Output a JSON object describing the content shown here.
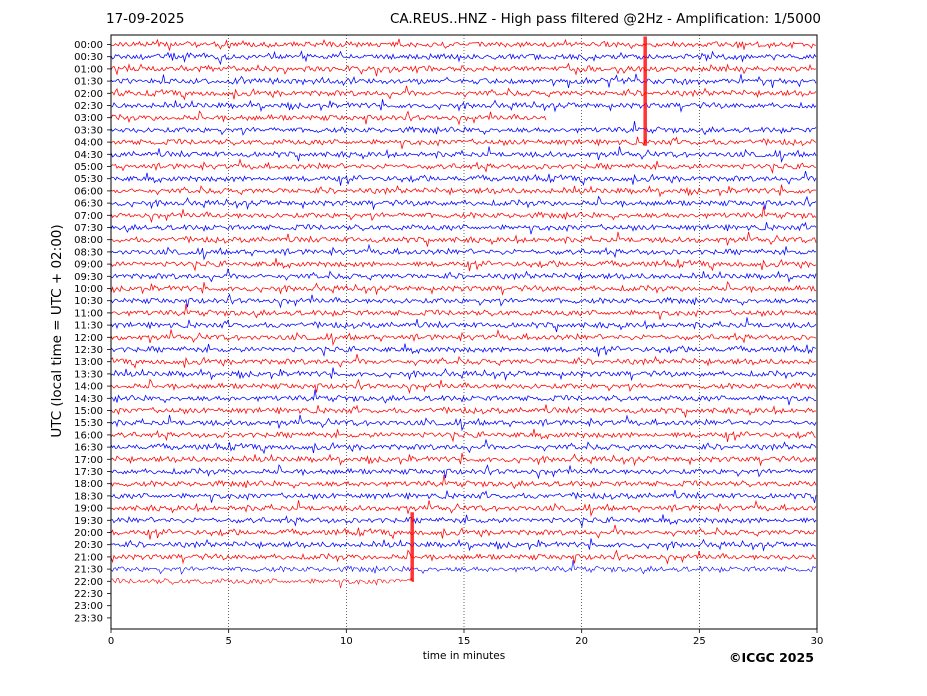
{
  "header": {
    "date": "17-09-2025",
    "title": "CA.REUS..HNZ - High pass filtered @2Hz - Amplification: 1/5000"
  },
  "copyright": "©ICGC 2025",
  "colors": {
    "trace_a": "#ff0000",
    "trace_b": "#0000ff",
    "grid": "#000000"
  },
  "chart_data": {
    "type": "line",
    "title": "CA.REUS..HNZ - High pass filtered @2Hz - Amplification: 1/5000",
    "xlabel": "time in minutes",
    "ylabel": "UTC (local time = UTC + 02:00)",
    "xlim": [
      0,
      30
    ],
    "x_ticks": [
      0,
      5,
      10,
      15,
      20,
      25,
      30
    ],
    "grid": "vertical dotted lines at x ticks",
    "row_labels": [
      "00:00",
      "00:30",
      "01:00",
      "01:30",
      "02:00",
      "02:30",
      "03:00",
      "03:30",
      "04:00",
      "04:30",
      "05:00",
      "05:30",
      "06:00",
      "06:30",
      "07:00",
      "07:30",
      "08:00",
      "08:30",
      "09:00",
      "09:30",
      "10:00",
      "10:30",
      "11:00",
      "11:30",
      "12:00",
      "12:30",
      "13:00",
      "13:30",
      "14:00",
      "14:30",
      "15:00",
      "15:30",
      "16:00",
      "16:30",
      "17:00",
      "17:30",
      "18:00",
      "18:30",
      "19:00",
      "19:30",
      "20:00",
      "20:30",
      "21:00",
      "21:30",
      "22:00",
      "22:30",
      "23:00",
      "23:30"
    ],
    "row_colors": [
      "red",
      "blue",
      "red",
      "blue",
      "red",
      "blue",
      "red",
      "blue",
      "red",
      "blue",
      "red",
      "blue",
      "red",
      "blue",
      "red",
      "blue",
      "red",
      "blue",
      "red",
      "blue",
      "red",
      "blue",
      "red",
      "blue",
      "red",
      "blue",
      "red",
      "blue",
      "red",
      "blue",
      "red",
      "blue",
      "red",
      "blue",
      "red",
      "blue",
      "red",
      "blue",
      "red",
      "blue",
      "red",
      "blue",
      "red",
      "blue",
      "red",
      "blue",
      "red",
      "blue"
    ],
    "data_end_minutes": [
      30,
      30,
      30,
      30,
      30,
      30,
      18.5,
      30,
      30,
      30,
      30,
      30,
      30,
      30,
      30,
      30,
      30,
      30,
      30,
      30,
      30,
      30,
      30,
      30,
      30,
      30,
      30,
      30,
      30,
      30,
      30,
      30,
      30,
      30,
      30,
      30,
      30,
      30,
      30,
      30,
      30,
      30,
      30,
      30,
      12.9,
      0,
      0,
      0
    ],
    "events": [
      {
        "row": "00:00",
        "minute": 22.7,
        "note": "large spike through 04:00"
      },
      {
        "row": "19:30",
        "minute": 12.8,
        "note": "large spike through 21:30"
      }
    ]
  }
}
